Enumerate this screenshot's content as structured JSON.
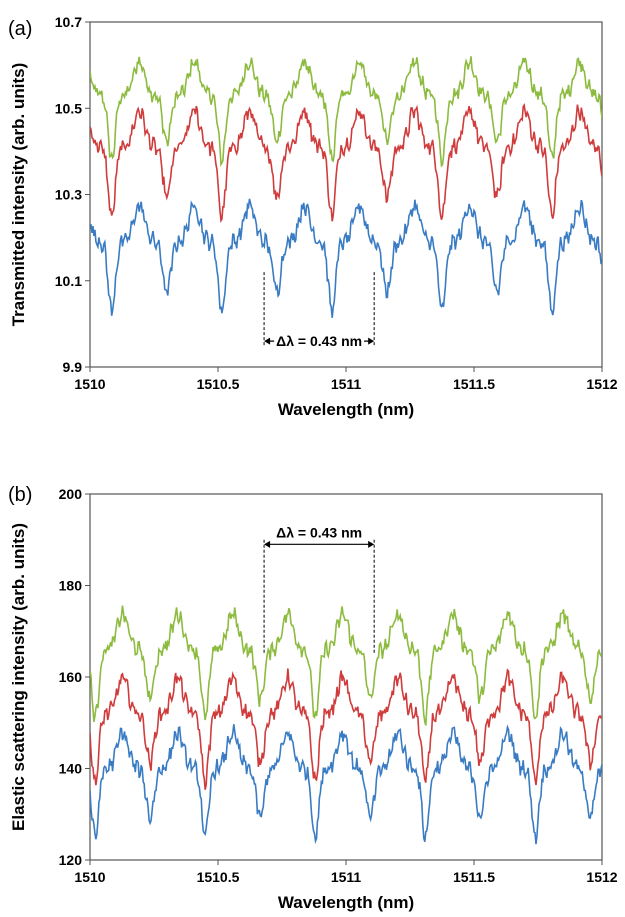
{
  "chart_data": [
    {
      "type": "line",
      "panel_label": "(a)",
      "xlabel": "Wavelength (nm)",
      "ylabel": "Transmitted intensity (arb. units)",
      "xlim": [
        1510,
        1512
      ],
      "ylim": [
        9.9,
        10.7
      ],
      "xticks": [
        "1510",
        "1510.5",
        "1511",
        "1511.5",
        "1512"
      ],
      "yticks": [
        "9.9",
        "10.1",
        "10.3",
        "10.5",
        "10.7"
      ],
      "grid": false,
      "period_nm": 0.43,
      "series": [
        {
          "color": "#8dbb3f",
          "base": 10.53,
          "amp": 0.12,
          "phase": 1510.085,
          "baseline_end": 10.52
        },
        {
          "color": "#d03c3c",
          "base": 10.41,
          "amp": 0.13,
          "phase": 1510.085,
          "baseline_end": 10.4
        },
        {
          "color": "#3a7cc4",
          "base": 10.19,
          "amp": 0.13,
          "phase": 1510.085,
          "baseline_end": 10.18
        }
      ],
      "annotation": {
        "text": "Δλ = 0.43 nm",
        "x_start": 1510.68,
        "x_end": 1511.11,
        "y": 9.96
      }
    },
    {
      "type": "line",
      "panel_label": "(b)",
      "xlabel": "Wavelength (nm)",
      "ylabel": "Elastic scattering intensity (arb. units)",
      "xlim": [
        1510,
        1512
      ],
      "ylim": [
        120,
        200
      ],
      "xticks": [
        "1510",
        "1510.5",
        "1511",
        "1511.5",
        "1512"
      ],
      "yticks": [
        "120",
        "140",
        "160",
        "180",
        "200"
      ],
      "grid": false,
      "period_nm": 0.43,
      "series": [
        {
          "color": "#8dbb3f",
          "base": 166,
          "amp": 12,
          "phase": 1510.02,
          "baseline_end": 164
        },
        {
          "color": "#d03c3c",
          "base": 152,
          "amp": 12,
          "phase": 1510.02,
          "baseline_end": 150
        },
        {
          "color": "#3a7cc4",
          "base": 140,
          "amp": 12,
          "phase": 1510.02,
          "baseline_end": 138
        }
      ],
      "annotation": {
        "text": "Δλ = 0.43 nm",
        "x_start": 1510.68,
        "x_end": 1511.11,
        "y": 189
      }
    }
  ]
}
